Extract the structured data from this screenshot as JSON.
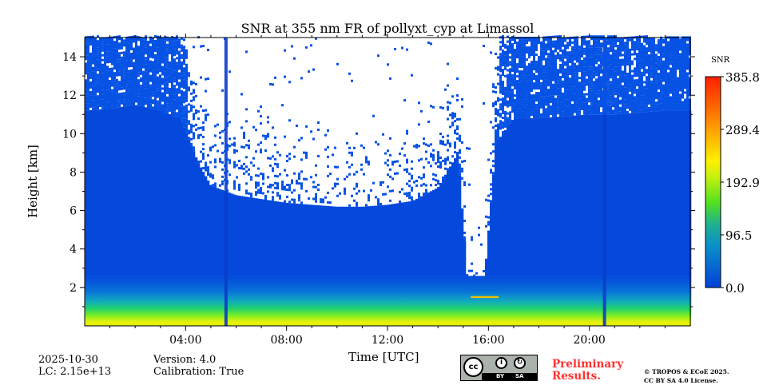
{
  "chart_data": {
    "type": "heatmap",
    "title": "SNR at 355 nm FR of pollyxt_cyp at Limassol",
    "xlabel": "Time [UTC]",
    "ylabel": "Height [km]",
    "xlim_hours": [
      0,
      24
    ],
    "ylim_km": [
      0,
      15
    ],
    "x_ticks": [
      {
        "h": 4,
        "label": "04:00"
      },
      {
        "h": 8,
        "label": "08:00"
      },
      {
        "h": 12,
        "label": "12:00"
      },
      {
        "h": 16,
        "label": "16:00"
      },
      {
        "h": 20,
        "label": "20:00"
      }
    ],
    "y_ticks": [
      {
        "v": 2,
        "label": "2"
      },
      {
        "v": 4,
        "label": "4"
      },
      {
        "v": 6,
        "label": "6"
      },
      {
        "v": 8,
        "label": "8"
      },
      {
        "v": 10,
        "label": "10"
      },
      {
        "v": 12,
        "label": "12"
      },
      {
        "v": 14,
        "label": "14"
      }
    ],
    "colorbar": {
      "label": "SNR",
      "min": 0.0,
      "max": 385.8,
      "ticks": [
        "0.0",
        "96.5",
        "192.9",
        "289.4",
        "385.8"
      ],
      "tick_values": [
        0.0,
        96.5,
        192.9,
        289.4,
        385.8
      ],
      "colormap": "jet"
    },
    "profile_hours": [
      0,
      1,
      2,
      3,
      3.8,
      4.5,
      5,
      6,
      7,
      8,
      9,
      10,
      11,
      12,
      13,
      14,
      14.8,
      15.2,
      15.8,
      16.3,
      17,
      18,
      19,
      20,
      21,
      22,
      23,
      24
    ],
    "signal_top_km": [
      11.2,
      11.3,
      11.5,
      11.2,
      10.8,
      8.5,
      7.3,
      6.8,
      6.6,
      6.4,
      6.3,
      6.2,
      6.2,
      6.3,
      6.5,
      7.2,
      9,
      1.8,
      1.8,
      9.5,
      10.8,
      10.8,
      10.9,
      11,
      11,
      11.1,
      11.2,
      11.2
    ],
    "noise_density": [
      0.85,
      0.85,
      0.85,
      0.85,
      0.8,
      0.35,
      0.3,
      0.28,
      0.25,
      0.2,
      0.18,
      0.16,
      0.16,
      0.17,
      0.2,
      0.25,
      0.4,
      0.05,
      0.05,
      0.55,
      0.8,
      0.85,
      0.85,
      0.85,
      0.85,
      0.85,
      0.85,
      0.85
    ],
    "low_signal_stripes_hours": [
      5.6,
      20.6
    ]
  },
  "info": {
    "date": "2025-10-30",
    "lc": "LC: 2.15e+13",
    "version": "Version: 4.0",
    "calibration": "Calibration: True",
    "preliminary": [
      "Preliminary",
      "Results."
    ],
    "copyright": "© TROPOS & ECoE 2025.",
    "license": "CC BY SA 4.0 License.",
    "cc_badge": {
      "cc": "cc",
      "by": "BY",
      "sa": "SA"
    }
  }
}
